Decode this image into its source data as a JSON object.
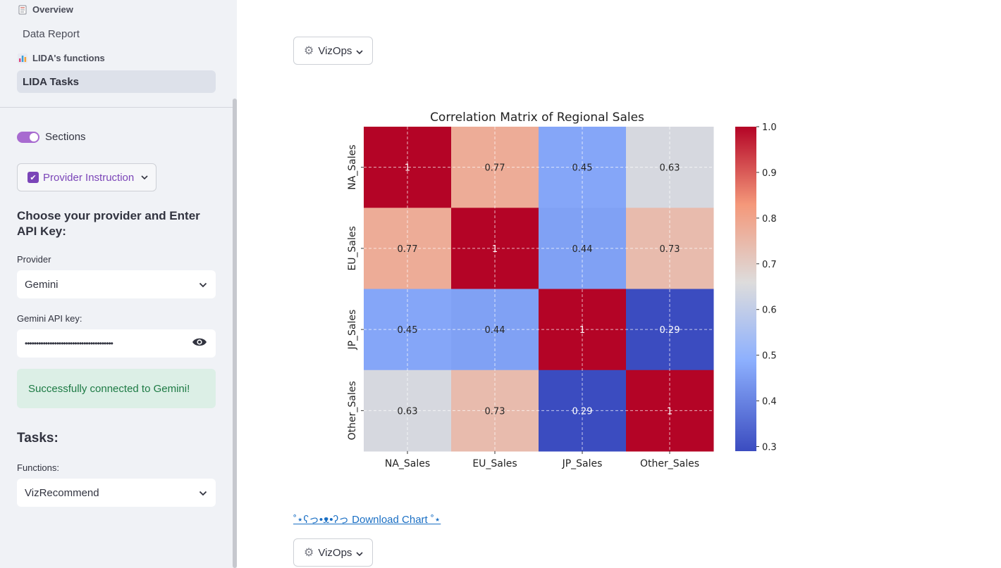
{
  "sidebar": {
    "nav": {
      "section1": {
        "icon": "page-icon",
        "label": "Overview"
      },
      "item1": "Data Report",
      "section2": {
        "icon": "bar-chart-icon",
        "label": "LIDA's functions"
      },
      "item2": "LIDA Tasks"
    },
    "toggle_label": "Sections",
    "provider_button": "Provider Instruction",
    "heading": "Choose your provider and Enter API Key:",
    "provider_label": "Provider",
    "provider_value": "Gemini",
    "api_key_label": "Gemini API key:",
    "api_key_value": "•••••••••••••••••••••••••••••••••••••••",
    "success_message": "Successfully connected to Gemini!",
    "tasks_heading": "Tasks:",
    "functions_label": "Functions:",
    "functions_value": "VizRecommend"
  },
  "main": {
    "vizops_label": "VizOps",
    "download_link": "˚⋆ʕっ•ᴥ•ʔっ Download Chart ˚⋆"
  },
  "colors": {
    "accent": "#a86bd0",
    "link": "#1a6fc4",
    "success_text": "#1d7a44"
  },
  "chart_data": {
    "type": "heatmap",
    "title": "Correlation Matrix of Regional Sales",
    "categories": [
      "NA_Sales",
      "EU_Sales",
      "JP_Sales",
      "Other_Sales"
    ],
    "values": [
      [
        1,
        0.77,
        0.45,
        0.63
      ],
      [
        0.77,
        1,
        0.44,
        0.73
      ],
      [
        0.45,
        0.44,
        1,
        0.29
      ],
      [
        0.63,
        0.73,
        0.29,
        1
      ]
    ],
    "value_labels": [
      [
        "1",
        "0.77",
        "0.45",
        "0.63"
      ],
      [
        "0.77",
        "1",
        "0.44",
        "0.73"
      ],
      [
        "0.45",
        "0.44",
        "1",
        "0.29"
      ],
      [
        "0.63",
        "0.73",
        "0.29",
        "1"
      ]
    ],
    "colorbar_ticks": [
      "1.0",
      "0.9",
      "0.8",
      "0.7",
      "0.6",
      "0.5",
      "0.4",
      "0.3"
    ],
    "colorbar_range": [
      0.29,
      1.0
    ],
    "colormap": "coolwarm",
    "grid": true
  }
}
